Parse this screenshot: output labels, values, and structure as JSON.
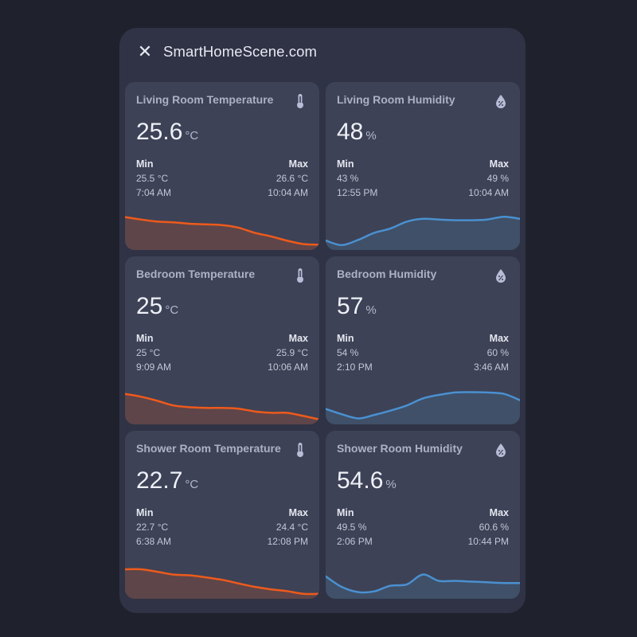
{
  "header": {
    "close_label": "✕",
    "title": "SmartHomeScene.com"
  },
  "colors": {
    "temperature_line": "#ee5a1b",
    "temperature_fill": "#5e4549",
    "humidity_line": "#4a90d0",
    "humidity_fill": "#3f5068"
  },
  "cards": [
    {
      "name": "Living Room Temperature",
      "icon": "thermometer-icon",
      "value": "25.6",
      "unit": "°C",
      "min_label": "Min",
      "min_value": "25.5 °C",
      "min_time": "7:04 AM",
      "max_label": "Max",
      "max_value": "26.6 °C",
      "max_time": "10:04 AM",
      "type": "temperature",
      "trend": [
        0.85,
        0.78,
        0.72,
        0.7,
        0.66,
        0.64,
        0.62,
        0.55,
        0.4,
        0.3,
        0.18,
        0.08,
        0.06
      ]
    },
    {
      "name": "Living Room Humidity",
      "icon": "humidity-icon",
      "value": "48",
      "unit": "%",
      "min_label": "Min",
      "min_value": "43 %",
      "min_time": "12:55 PM",
      "max_label": "Max",
      "max_value": "49 %",
      "max_time": "10:04 AM",
      "type": "humidity",
      "trend": [
        0.18,
        0.05,
        0.2,
        0.4,
        0.52,
        0.72,
        0.8,
        0.78,
        0.76,
        0.76,
        0.78,
        0.86,
        0.8
      ]
    },
    {
      "name": "Bedroom Temperature",
      "icon": "thermometer-icon",
      "value": "25",
      "unit": "°C",
      "min_label": "Min",
      "min_value": "25 °C",
      "min_time": "9:09 AM",
      "max_label": "Max",
      "max_value": "25.9 °C",
      "max_time": "10:06 AM",
      "type": "temperature",
      "trend": [
        0.78,
        0.7,
        0.58,
        0.45,
        0.4,
        0.38,
        0.38,
        0.36,
        0.28,
        0.24,
        0.24,
        0.15,
        0.05
      ]
    },
    {
      "name": "Bedroom Humidity",
      "icon": "humidity-icon",
      "value": "57",
      "unit": "%",
      "min_label": "Min",
      "min_value": "54 %",
      "min_time": "2:10 PM",
      "max_label": "Max",
      "max_value": "60 %",
      "max_time": "3:46 AM",
      "type": "humidity",
      "trend": [
        0.35,
        0.2,
        0.08,
        0.18,
        0.3,
        0.45,
        0.65,
        0.75,
        0.82,
        0.83,
        0.82,
        0.78,
        0.6
      ]
    },
    {
      "name": "Shower Room Temperature",
      "icon": "thermometer-icon",
      "value": "22.7",
      "unit": "°C",
      "min_label": "Min",
      "min_value": "22.7 °C",
      "min_time": "6:38 AM",
      "max_label": "Max",
      "max_value": "24.4 °C",
      "max_time": "12:08 PM",
      "type": "temperature",
      "trend": [
        0.75,
        0.75,
        0.68,
        0.6,
        0.58,
        0.52,
        0.45,
        0.35,
        0.25,
        0.18,
        0.13,
        0.05,
        0.05
      ]
    },
    {
      "name": "Shower Room Humidity",
      "icon": "humidity-icon",
      "value": "54.6",
      "unit": "%",
      "min_label": "Min",
      "min_value": "49.5 %",
      "min_time": "2:06 PM",
      "max_label": "Max",
      "max_value": "60.6 %",
      "max_time": "10:44 PM",
      "type": "humidity",
      "trend": [
        0.55,
        0.25,
        0.1,
        0.12,
        0.28,
        0.32,
        0.6,
        0.42,
        0.42,
        0.4,
        0.38,
        0.36,
        0.36
      ]
    }
  ]
}
